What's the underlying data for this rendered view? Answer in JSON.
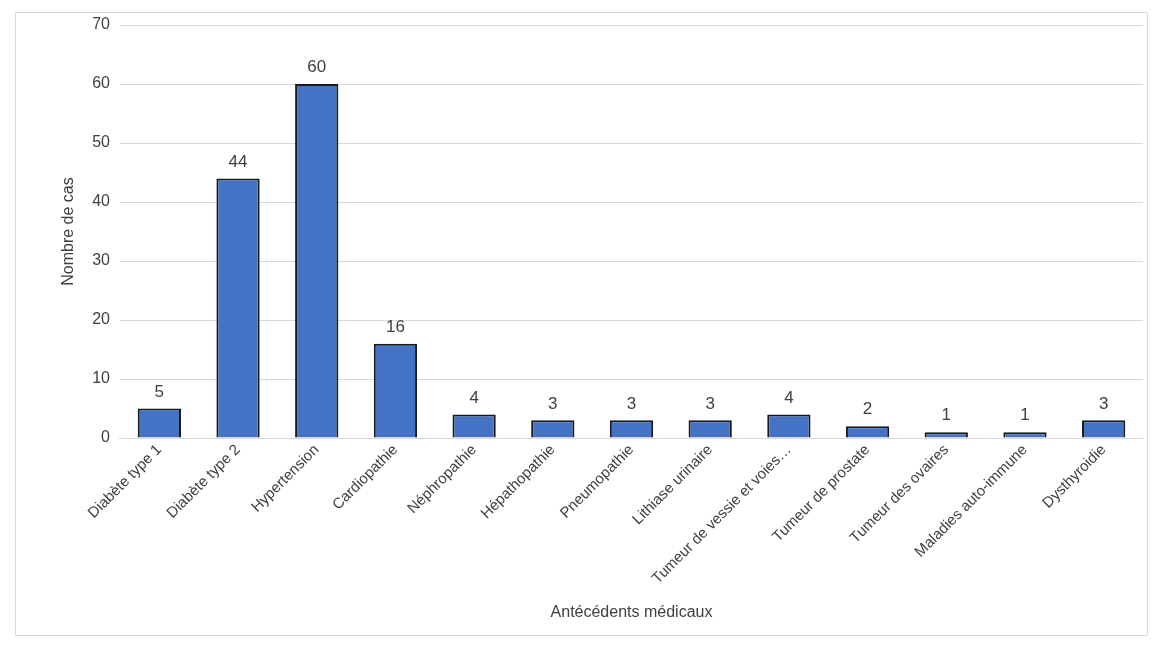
{
  "chart_data": {
    "type": "bar",
    "xlabel": "Antécédents médicaux",
    "ylabel": "Nombre de cas",
    "categories": [
      "Diabète type 1",
      "Diabète type 2",
      "Hypertension",
      "Cardiopathie",
      "Néphropathie",
      "Hépathopathie",
      "Pneumopathie",
      "Lithiase urinaire",
      "Tumeur de vessie et voies…",
      "Tumeur de prostate",
      "Tumeur des ovaires",
      "Maladies auto-immune",
      "Dysthyroidie"
    ],
    "values": [
      5,
      44,
      60,
      16,
      4,
      3,
      3,
      3,
      4,
      2,
      1,
      1,
      3
    ],
    "color": "#4472c4",
    "ylim": [
      0,
      70
    ],
    "yticks": [
      0,
      10,
      20,
      30,
      40,
      50,
      60,
      70
    ],
    "grid": "y",
    "data_labels": true,
    "legend": false
  }
}
